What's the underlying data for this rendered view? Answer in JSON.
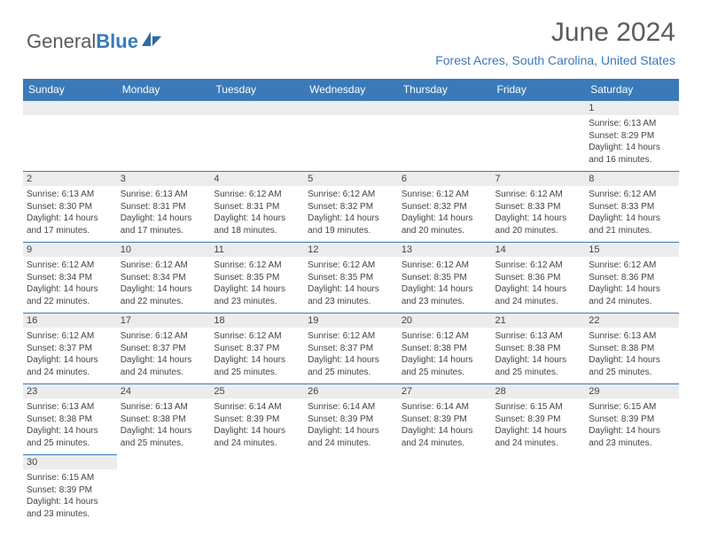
{
  "logo": {
    "text_a": "General",
    "text_b": "Blue"
  },
  "title": "June 2024",
  "location": "Forest Acres, South Carolina, United States",
  "colors": {
    "header_bg": "#3a7ab8",
    "header_fg": "#ffffff",
    "daynum_bg": "#ececec",
    "border": "#3a7ab8"
  },
  "weekdays": [
    "Sunday",
    "Monday",
    "Tuesday",
    "Wednesday",
    "Thursday",
    "Friday",
    "Saturday"
  ],
  "cells": [
    {
      "day": "",
      "sunrise": "",
      "sunset": "",
      "daylight": ""
    },
    {
      "day": "",
      "sunrise": "",
      "sunset": "",
      "daylight": ""
    },
    {
      "day": "",
      "sunrise": "",
      "sunset": "",
      "daylight": ""
    },
    {
      "day": "",
      "sunrise": "",
      "sunset": "",
      "daylight": ""
    },
    {
      "day": "",
      "sunrise": "",
      "sunset": "",
      "daylight": ""
    },
    {
      "day": "",
      "sunrise": "",
      "sunset": "",
      "daylight": ""
    },
    {
      "day": "1",
      "sunrise": "Sunrise: 6:13 AM",
      "sunset": "Sunset: 8:29 PM",
      "daylight": "Daylight: 14 hours and 16 minutes."
    },
    {
      "day": "2",
      "sunrise": "Sunrise: 6:13 AM",
      "sunset": "Sunset: 8:30 PM",
      "daylight": "Daylight: 14 hours and 17 minutes."
    },
    {
      "day": "3",
      "sunrise": "Sunrise: 6:13 AM",
      "sunset": "Sunset: 8:31 PM",
      "daylight": "Daylight: 14 hours and 17 minutes."
    },
    {
      "day": "4",
      "sunrise": "Sunrise: 6:12 AM",
      "sunset": "Sunset: 8:31 PM",
      "daylight": "Daylight: 14 hours and 18 minutes."
    },
    {
      "day": "5",
      "sunrise": "Sunrise: 6:12 AM",
      "sunset": "Sunset: 8:32 PM",
      "daylight": "Daylight: 14 hours and 19 minutes."
    },
    {
      "day": "6",
      "sunrise": "Sunrise: 6:12 AM",
      "sunset": "Sunset: 8:32 PM",
      "daylight": "Daylight: 14 hours and 20 minutes."
    },
    {
      "day": "7",
      "sunrise": "Sunrise: 6:12 AM",
      "sunset": "Sunset: 8:33 PM",
      "daylight": "Daylight: 14 hours and 20 minutes."
    },
    {
      "day": "8",
      "sunrise": "Sunrise: 6:12 AM",
      "sunset": "Sunset: 8:33 PM",
      "daylight": "Daylight: 14 hours and 21 minutes."
    },
    {
      "day": "9",
      "sunrise": "Sunrise: 6:12 AM",
      "sunset": "Sunset: 8:34 PM",
      "daylight": "Daylight: 14 hours and 22 minutes."
    },
    {
      "day": "10",
      "sunrise": "Sunrise: 6:12 AM",
      "sunset": "Sunset: 8:34 PM",
      "daylight": "Daylight: 14 hours and 22 minutes."
    },
    {
      "day": "11",
      "sunrise": "Sunrise: 6:12 AM",
      "sunset": "Sunset: 8:35 PM",
      "daylight": "Daylight: 14 hours and 23 minutes."
    },
    {
      "day": "12",
      "sunrise": "Sunrise: 6:12 AM",
      "sunset": "Sunset: 8:35 PM",
      "daylight": "Daylight: 14 hours and 23 minutes."
    },
    {
      "day": "13",
      "sunrise": "Sunrise: 6:12 AM",
      "sunset": "Sunset: 8:35 PM",
      "daylight": "Daylight: 14 hours and 23 minutes."
    },
    {
      "day": "14",
      "sunrise": "Sunrise: 6:12 AM",
      "sunset": "Sunset: 8:36 PM",
      "daylight": "Daylight: 14 hours and 24 minutes."
    },
    {
      "day": "15",
      "sunrise": "Sunrise: 6:12 AM",
      "sunset": "Sunset: 8:36 PM",
      "daylight": "Daylight: 14 hours and 24 minutes."
    },
    {
      "day": "16",
      "sunrise": "Sunrise: 6:12 AM",
      "sunset": "Sunset: 8:37 PM",
      "daylight": "Daylight: 14 hours and 24 minutes."
    },
    {
      "day": "17",
      "sunrise": "Sunrise: 6:12 AM",
      "sunset": "Sunset: 8:37 PM",
      "daylight": "Daylight: 14 hours and 24 minutes."
    },
    {
      "day": "18",
      "sunrise": "Sunrise: 6:12 AM",
      "sunset": "Sunset: 8:37 PM",
      "daylight": "Daylight: 14 hours and 25 minutes."
    },
    {
      "day": "19",
      "sunrise": "Sunrise: 6:12 AM",
      "sunset": "Sunset: 8:37 PM",
      "daylight": "Daylight: 14 hours and 25 minutes."
    },
    {
      "day": "20",
      "sunrise": "Sunrise: 6:12 AM",
      "sunset": "Sunset: 8:38 PM",
      "daylight": "Daylight: 14 hours and 25 minutes."
    },
    {
      "day": "21",
      "sunrise": "Sunrise: 6:13 AM",
      "sunset": "Sunset: 8:38 PM",
      "daylight": "Daylight: 14 hours and 25 minutes."
    },
    {
      "day": "22",
      "sunrise": "Sunrise: 6:13 AM",
      "sunset": "Sunset: 8:38 PM",
      "daylight": "Daylight: 14 hours and 25 minutes."
    },
    {
      "day": "23",
      "sunrise": "Sunrise: 6:13 AM",
      "sunset": "Sunset: 8:38 PM",
      "daylight": "Daylight: 14 hours and 25 minutes."
    },
    {
      "day": "24",
      "sunrise": "Sunrise: 6:13 AM",
      "sunset": "Sunset: 8:38 PM",
      "daylight": "Daylight: 14 hours and 25 minutes."
    },
    {
      "day": "25",
      "sunrise": "Sunrise: 6:14 AM",
      "sunset": "Sunset: 8:39 PM",
      "daylight": "Daylight: 14 hours and 24 minutes."
    },
    {
      "day": "26",
      "sunrise": "Sunrise: 6:14 AM",
      "sunset": "Sunset: 8:39 PM",
      "daylight": "Daylight: 14 hours and 24 minutes."
    },
    {
      "day": "27",
      "sunrise": "Sunrise: 6:14 AM",
      "sunset": "Sunset: 8:39 PM",
      "daylight": "Daylight: 14 hours and 24 minutes."
    },
    {
      "day": "28",
      "sunrise": "Sunrise: 6:15 AM",
      "sunset": "Sunset: 8:39 PM",
      "daylight": "Daylight: 14 hours and 24 minutes."
    },
    {
      "day": "29",
      "sunrise": "Sunrise: 6:15 AM",
      "sunset": "Sunset: 8:39 PM",
      "daylight": "Daylight: 14 hours and 23 minutes."
    },
    {
      "day": "30",
      "sunrise": "Sunrise: 6:15 AM",
      "sunset": "Sunset: 8:39 PM",
      "daylight": "Daylight: 14 hours and 23 minutes."
    },
    {
      "day": "",
      "sunrise": "",
      "sunset": "",
      "daylight": ""
    },
    {
      "day": "",
      "sunrise": "",
      "sunset": "",
      "daylight": ""
    },
    {
      "day": "",
      "sunrise": "",
      "sunset": "",
      "daylight": ""
    },
    {
      "day": "",
      "sunrise": "",
      "sunset": "",
      "daylight": ""
    },
    {
      "day": "",
      "sunrise": "",
      "sunset": "",
      "daylight": ""
    },
    {
      "day": "",
      "sunrise": "",
      "sunset": "",
      "daylight": ""
    }
  ]
}
